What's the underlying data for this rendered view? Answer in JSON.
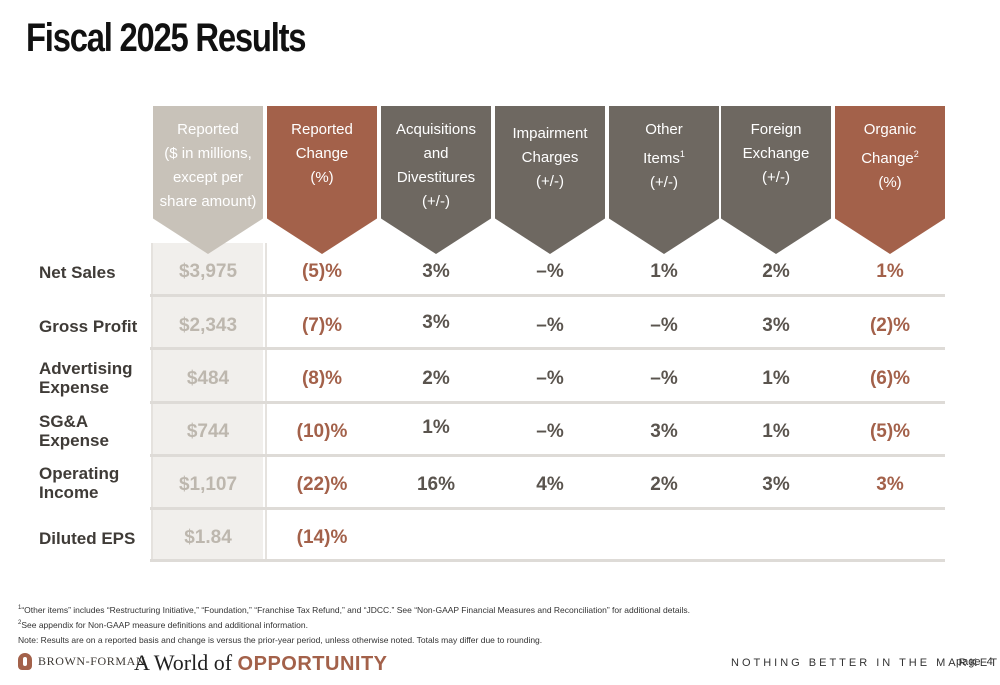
{
  "title": "Fiscal 2025 Results",
  "columns": [
    {
      "lines": [
        "Reported",
        "($ in millions,",
        "except per",
        "share amount)"
      ],
      "sup": ""
    },
    {
      "lines": [
        "Reported",
        "Change",
        "(%)"
      ],
      "sup": ""
    },
    {
      "lines": [
        "Acquisitions",
        "and",
        "Divestitures",
        "(+/-)"
      ],
      "sup": ""
    },
    {
      "lines": [
        "Impairment",
        "Charges",
        "(+/-)"
      ],
      "sup": ""
    },
    {
      "lines": [
        "Other",
        "Items",
        "(+/-)"
      ],
      "sup": "1"
    },
    {
      "lines": [
        "Foreign",
        "Exchange",
        "(+/-)"
      ],
      "sup": ""
    },
    {
      "lines": [
        "Organic",
        "Change",
        "(%)"
      ],
      "sup": "2"
    }
  ],
  "rows": [
    {
      "label": "Net Sales",
      "values": [
        "$3,975",
        "(5)%",
        "3%",
        "–%",
        "1%",
        "2%",
        "1%"
      ]
    },
    {
      "label": "Gross Profit",
      "values": [
        "$2,343",
        "(7)%",
        "3%",
        "–%",
        "–%",
        "3%",
        "(2)%"
      ]
    },
    {
      "label": "Advertising Expense",
      "values": [
        "$484",
        "(8)%",
        "2%",
        "–%",
        "–%",
        "1%",
        "(6)%"
      ]
    },
    {
      "label": "SG&A Expense",
      "values": [
        "$744",
        "(10)%",
        "1%",
        "–%",
        "3%",
        "1%",
        "(5)%"
      ]
    },
    {
      "label": "Operating Income",
      "values": [
        "$1,107",
        "(22)%",
        "16%",
        "4%",
        "2%",
        "3%",
        "3%"
      ]
    },
    {
      "label": "Diluted EPS",
      "values": [
        "$1.84",
        "(14)%",
        "",
        "",
        "",
        "",
        ""
      ]
    }
  ],
  "footnotes": {
    "fn1_sup": "1",
    "fn1": "“Other items” includes “Restructuring Initiative,” “Foundation,” “Franchise Tax Refund,” and “JDCC.” See “Non-GAAP Financial Measures and Reconciliation” for additional details.",
    "fn2_sup": "2",
    "fn2": "See appendix for Non-GAAP measure definitions and additional information.",
    "note": "Note: Results are on a reported basis and change is versus the prior-year period, unless otherwise noted. Totals may differ due to rounding."
  },
  "footer": {
    "brand": "BROWN-FORMAN",
    "tagline_prefix": "A World of",
    "tagline_emphasis": "OPPORTUNITY",
    "slogan": "NOTHING BETTER IN THE MARKET",
    "page_label": "page",
    "page_number": "4"
  },
  "colors": {
    "accent": "#a3614a",
    "gray_header": "#6e6861",
    "light_header": "#c8c2b9"
  }
}
